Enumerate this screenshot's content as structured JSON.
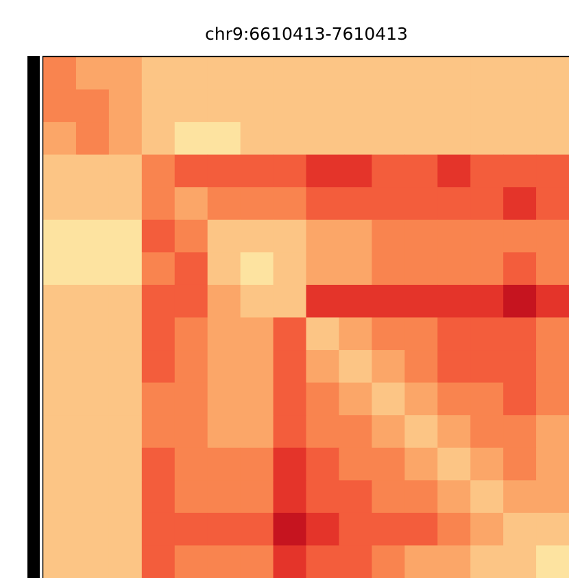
{
  "chart_data": {
    "type": "heatmap",
    "title": "chr9:6610413-7610413",
    "zlim": [
      1,
      9
    ],
    "colormap": [
      "#fff5cc",
      "#fde3a0",
      "#fcc585",
      "#fba668",
      "#f9844f",
      "#f35d3c",
      "#e4342a",
      "#c6141f",
      "#940722"
    ],
    "values": [
      [
        5,
        4,
        4,
        3,
        3,
        3,
        3,
        3,
        3,
        3,
        3,
        3,
        3,
        3,
        3,
        3
      ],
      [
        5,
        5,
        4,
        3,
        3,
        3,
        3,
        3,
        3,
        3,
        3,
        3,
        3,
        3,
        3,
        3
      ],
      [
        4,
        5,
        4,
        3,
        2,
        2,
        3,
        3,
        3,
        3,
        3,
        3,
        3,
        3,
        3,
        3
      ],
      [
        3,
        3,
        3,
        5,
        6,
        6,
        6,
        6,
        7,
        7,
        6,
        6,
        7,
        6,
        6,
        6
      ],
      [
        3,
        3,
        3,
        5,
        4,
        5,
        5,
        5,
        6,
        6,
        6,
        6,
        6,
        6,
        7,
        6
      ],
      [
        2,
        2,
        2,
        6,
        5,
        3,
        3,
        3,
        4,
        4,
        5,
        5,
        5,
        5,
        5,
        5
      ],
      [
        2,
        2,
        2,
        5,
        6,
        3,
        2,
        3,
        4,
        4,
        5,
        5,
        5,
        5,
        6,
        5
      ],
      [
        3,
        3,
        3,
        6,
        6,
        4,
        3,
        3,
        7,
        7,
        7,
        7,
        7,
        7,
        8,
        7
      ],
      [
        3,
        3,
        3,
        6,
        5,
        4,
        4,
        6,
        3,
        4,
        5,
        5,
        6,
        6,
        6,
        5
      ],
      [
        3,
        3,
        3,
        6,
        5,
        4,
        4,
        6,
        4,
        3,
        4,
        5,
        6,
        6,
        6,
        5
      ],
      [
        3,
        3,
        3,
        5,
        5,
        4,
        4,
        6,
        5,
        4,
        3,
        4,
        5,
        5,
        6,
        5
      ],
      [
        3,
        3,
        3,
        5,
        5,
        4,
        4,
        6,
        5,
        5,
        4,
        3,
        4,
        5,
        5,
        4
      ],
      [
        3,
        3,
        3,
        6,
        5,
        5,
        5,
        7,
        6,
        5,
        5,
        4,
        3,
        4,
        5,
        4
      ],
      [
        3,
        3,
        3,
        6,
        5,
        5,
        5,
        7,
        6,
        6,
        5,
        5,
        4,
        3,
        4,
        4
      ],
      [
        3,
        3,
        3,
        6,
        6,
        6,
        6,
        8,
        7,
        6,
        6,
        6,
        5,
        4,
        3,
        3
      ],
      [
        3,
        3,
        3,
        6,
        5,
        5,
        5,
        7,
        6,
        6,
        5,
        4,
        4,
        3,
        3,
        2
      ]
    ]
  }
}
